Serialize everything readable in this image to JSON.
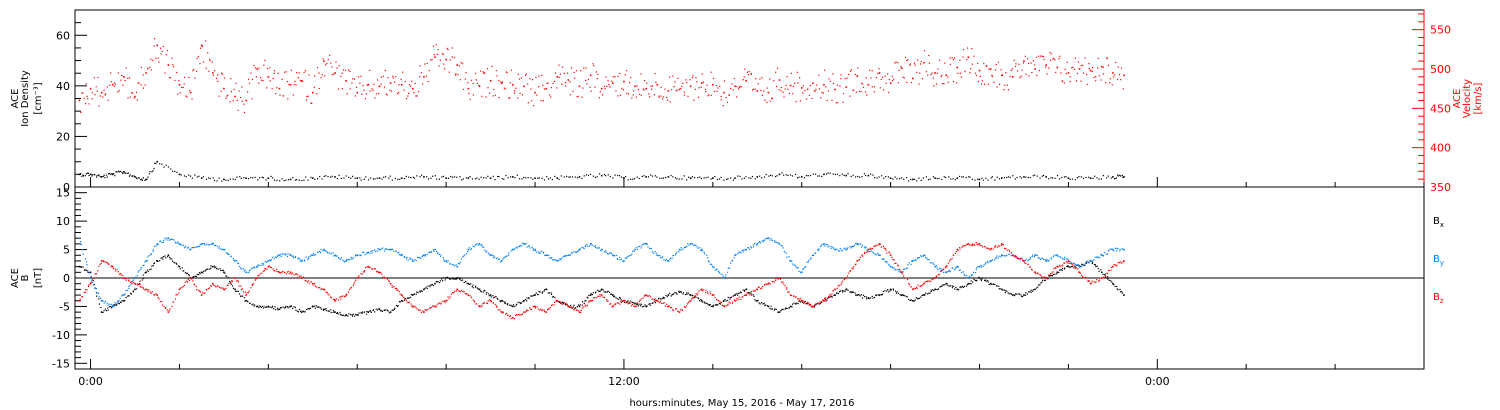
{
  "chart_data": [
    {
      "type": "scatter",
      "panel": "top",
      "left_axis": {
        "labels": [
          "ACE",
          "Ion Density",
          "[cm⁻³]"
        ],
        "ylim": [
          0,
          70
        ],
        "ticks": [
          0,
          20,
          40,
          60
        ],
        "color": "#000000"
      },
      "right_axis": {
        "labels": [
          "ACE",
          "Velocity",
          "[km/s]"
        ],
        "ylim": [
          350,
          575
        ],
        "ticks": [
          350,
          400,
          450,
          500,
          550
        ],
        "color": "#ff0000"
      },
      "series": [
        {
          "color": "#000000",
          "axis": "left",
          "x": [
            -0.5,
            0,
            0.5,
            1,
            1.5,
            2,
            2.5,
            3,
            4,
            5,
            6,
            7,
            8,
            9,
            10,
            11,
            12,
            13,
            14,
            15,
            16,
            17,
            18,
            19,
            20,
            21,
            22,
            23,
            24,
            25,
            26,
            27,
            28,
            29,
            30,
            31,
            32,
            33,
            34,
            35,
            36,
            37,
            38,
            39,
            40,
            41,
            42,
            43,
            44,
            45,
            46,
            46.5
          ],
          "values": [
            5,
            5,
            4,
            5,
            6,
            4,
            3,
            10,
            5,
            3.5,
            3,
            3.5,
            3.5,
            3,
            3.5,
            4,
            3.5,
            3.5,
            3.5,
            4,
            3.5,
            3.5,
            3.5,
            4,
            3.5,
            3.5,
            4,
            4.5,
            3.5,
            4,
            4,
            3.5,
            3.5,
            3.5,
            4,
            5,
            4,
            5,
            4.5,
            4.5,
            3.5,
            3,
            3.5,
            3.5,
            3,
            3.5,
            4,
            4,
            3.5,
            3.5,
            4,
            4
          ]
        },
        {
          "color": "#ff0000",
          "axis": "right",
          "x": [
            -0.5,
            0,
            0.5,
            1,
            1.5,
            2,
            2.5,
            3,
            3.5,
            4,
            4.5,
            5,
            5.5,
            6,
            6.5,
            7,
            7.5,
            8,
            8.5,
            9,
            9.5,
            10,
            10.5,
            11,
            11.5,
            12,
            12.5,
            13,
            13.5,
            14,
            14.5,
            15,
            15.5,
            16,
            16.5,
            17,
            17.5,
            18,
            18.5,
            19,
            19.5,
            20,
            20.5,
            21,
            21.5,
            22,
            22.5,
            23,
            23.5,
            24,
            24.5,
            25,
            25.5,
            26,
            26.5,
            27,
            27.5,
            28,
            28.5,
            29,
            29.5,
            30,
            30.5,
            31,
            31.5,
            32,
            32.5,
            33,
            33.5,
            34,
            34.5,
            35,
            35.5,
            36,
            36.5,
            37,
            37.5,
            38,
            38.5,
            39,
            39.5,
            40,
            40.5,
            41,
            41.5,
            42,
            42.5,
            43,
            43.5,
            44,
            44.5,
            45,
            45.5,
            46,
            46.5
          ],
          "values": [
            460,
            475,
            470,
            480,
            490,
            465,
            495,
            530,
            505,
            480,
            470,
            530,
            495,
            475,
            465,
            460,
            500,
            490,
            475,
            480,
            485,
            470,
            510,
            495,
            485,
            470,
            480,
            478,
            482,
            480,
            475,
            490,
            515,
            512,
            505,
            475,
            478,
            485,
            482,
            480,
            478,
            470,
            475,
            490,
            486,
            478,
            492,
            475,
            482,
            484,
            478,
            475,
            480,
            472,
            474,
            478,
            482,
            480,
            470,
            478,
            485,
            472,
            470,
            486,
            479,
            476,
            482,
            480,
            474,
            477,
            491,
            480,
            495,
            482,
            501,
            488,
            508,
            495,
            492,
            502,
            515,
            498,
            500,
            492,
            490,
            510,
            500,
            505,
            502,
            495,
            500,
            498,
            503,
            495,
            492
          ]
        }
      ]
    },
    {
      "type": "scatter",
      "panel": "bottom",
      "left_axis": {
        "labels": [
          "ACE",
          "B",
          "[nT]"
        ],
        "ylim": [
          -16,
          16
        ],
        "ticks": [
          -15,
          -10,
          -5,
          0,
          5,
          10,
          15
        ],
        "color": "#000000"
      },
      "legend": {
        "position": "right",
        "items": [
          {
            "label": "B",
            "sub": "x",
            "color": "#000000"
          },
          {
            "label": "B",
            "sub": "y",
            "color": "#0080ff"
          },
          {
            "label": "B",
            "sub": "z",
            "color": "#ff0000"
          }
        ]
      },
      "series": [
        {
          "name": "Bx",
          "color": "#000000",
          "x": [
            -0.5,
            0,
            0.5,
            1,
            1.5,
            2,
            2.5,
            3,
            3.5,
            4,
            4.5,
            5,
            5.5,
            6,
            6.5,
            7,
            7.5,
            8,
            8.5,
            9,
            9.5,
            10,
            10.5,
            11,
            11.5,
            12,
            12.5,
            13,
            13.5,
            14,
            14.5,
            15,
            15.5,
            16,
            16.5,
            17,
            17.5,
            18,
            18.5,
            19,
            19.5,
            20,
            20.5,
            21,
            21.5,
            22,
            22.5,
            23,
            23.5,
            24,
            24.5,
            25,
            25.5,
            26,
            26.5,
            27,
            27.5,
            28,
            28.5,
            29,
            29.5,
            30,
            30.5,
            31,
            31.5,
            32,
            32.5,
            33,
            33.5,
            34,
            34.5,
            35,
            35.5,
            36,
            36.5,
            37,
            37.5,
            38,
            38.5,
            39,
            39.5,
            40,
            40.5,
            41,
            41.5,
            42,
            42.5,
            43,
            43.5,
            44,
            44.5,
            45,
            45.5,
            46,
            46.5
          ],
          "values": [
            2,
            1,
            -6,
            -5,
            -4,
            -2,
            1,
            3,
            4,
            2,
            0,
            1,
            2,
            1,
            -2,
            -4,
            -5,
            -5,
            -5.5,
            -5,
            -6,
            -5,
            -5.5,
            -6,
            -6.5,
            -6.5,
            -6,
            -5.5,
            -6,
            -4,
            -3,
            -2,
            -1,
            0,
            0,
            -1,
            -2,
            -3,
            -4,
            -5,
            -4,
            -3,
            -2,
            -4,
            -5,
            -5,
            -3,
            -2,
            -3,
            -4,
            -4.5,
            -5,
            -4,
            -3,
            -2.5,
            -3,
            -4,
            -5,
            -4,
            -3,
            -2,
            -4,
            -5,
            -6,
            -5,
            -4,
            -5,
            -4,
            -3,
            -2,
            -3,
            -3.5,
            -3,
            -2,
            -3,
            -4,
            -3,
            -2,
            -1,
            -2,
            -1,
            0,
            -1,
            -2,
            -3,
            -3,
            -2,
            0,
            1,
            2,
            2,
            3,
            1,
            -1,
            -3
          ]
        },
        {
          "name": "By",
          "color": "#0080ff",
          "x": [
            -0.5,
            0,
            0.5,
            1,
            1.5,
            2,
            2.5,
            3,
            3.5,
            4,
            4.5,
            5,
            5.5,
            6,
            6.5,
            7,
            7.5,
            8,
            8.5,
            9,
            9.5,
            10,
            10.5,
            11,
            11.5,
            12,
            12.5,
            13,
            13.5,
            14,
            14.5,
            15,
            15.5,
            16,
            16.5,
            17,
            17.5,
            18,
            18.5,
            19,
            19.5,
            20,
            20.5,
            21,
            21.5,
            22,
            22.5,
            23,
            23.5,
            24,
            24.5,
            25,
            25.5,
            26,
            26.5,
            27,
            27.5,
            28,
            28.5,
            29,
            29.5,
            30,
            30.5,
            31,
            31.5,
            32,
            32.5,
            33,
            33.5,
            34,
            34.5,
            35,
            35.5,
            36,
            36.5,
            37,
            37.5,
            38,
            38.5,
            39,
            39.5,
            40,
            40.5,
            41,
            41.5,
            42,
            42.5,
            43,
            43.5,
            44,
            44.5,
            45,
            45.5,
            46,
            46.5
          ],
          "values": [
            7,
            0,
            -4,
            -5,
            -3,
            0,
            3,
            6,
            7,
            6,
            5,
            6,
            6,
            5,
            3,
            1,
            2,
            3,
            4,
            4,
            3,
            4,
            5,
            4,
            3,
            4,
            4.5,
            5,
            5,
            4,
            3,
            4,
            5,
            3,
            2,
            5,
            6,
            4,
            3,
            5,
            6,
            5,
            4,
            3,
            4,
            5,
            6,
            5,
            4,
            3,
            5,
            6,
            4,
            3,
            5,
            6,
            5,
            2,
            0,
            4,
            5,
            6,
            7,
            6,
            3,
            1,
            4,
            6,
            5,
            5,
            6,
            5,
            4,
            2,
            1,
            3,
            4,
            2,
            1,
            2,
            0,
            2,
            3,
            4,
            4,
            3,
            4,
            3,
            4,
            3,
            2,
            3,
            4,
            5,
            5
          ]
        },
        {
          "name": "Bz",
          "color": "#ff0000",
          "x": [
            -0.5,
            0,
            0.5,
            1,
            1.5,
            2,
            2.5,
            3,
            3.5,
            4,
            4.5,
            5,
            5.5,
            6,
            6.5,
            7,
            7.5,
            8,
            8.5,
            9,
            9.5,
            10,
            10.5,
            11,
            11.5,
            12,
            12.5,
            13,
            13.5,
            14,
            14.5,
            15,
            15.5,
            16,
            16.5,
            17,
            17.5,
            18,
            18.5,
            19,
            19.5,
            20,
            20.5,
            21,
            21.5,
            22,
            22.5,
            23,
            23.5,
            24,
            24.5,
            25,
            25.5,
            26,
            26.5,
            27,
            27.5,
            28,
            28.5,
            29,
            29.5,
            30,
            30.5,
            31,
            31.5,
            32,
            32.5,
            33,
            33.5,
            34,
            34.5,
            35,
            35.5,
            36,
            36.5,
            37,
            37.5,
            38,
            38.5,
            39,
            39.5,
            40,
            40.5,
            41,
            41.5,
            42,
            42.5,
            43,
            43.5,
            44,
            44.5,
            45,
            45.5,
            46,
            46.5
          ],
          "values": [
            -4,
            -1,
            3,
            2,
            0,
            -1,
            -2,
            -3,
            -6,
            -2,
            0,
            -3,
            -1,
            -2,
            0,
            -3,
            0,
            2,
            1,
            1,
            0,
            -1,
            -2,
            -4,
            -3,
            0,
            2,
            1,
            -1,
            -3,
            -5,
            -6,
            -5,
            -4,
            -2,
            -3,
            -5,
            -4,
            -6,
            -7,
            -6,
            -5,
            -6,
            -4,
            -5,
            -6,
            -4,
            -3,
            -5,
            -4,
            -5,
            -3,
            -4,
            -5,
            -6,
            -4,
            -2,
            -3,
            -5,
            -4,
            -3,
            -2,
            -1,
            0,
            -3,
            -4,
            -5,
            -4,
            -2,
            0,
            3,
            5,
            6,
            4,
            1,
            -2,
            -1,
            0,
            2,
            5,
            6,
            6,
            5,
            6,
            4,
            3,
            1,
            0,
            2,
            3,
            1,
            -1,
            0,
            2,
            3
          ]
        }
      ]
    }
  ],
  "xaxis": {
    "label": "hours:minutes, May 15, 2016 - May 17, 2016",
    "xlim": [
      -0.7,
      60
    ],
    "major_ticks": [
      {
        "x": 0,
        "label": "0:00"
      },
      {
        "x": 24,
        "label": "12:00"
      },
      {
        "x": 48,
        "label": "0:00"
      }
    ],
    "minor_step": 4
  }
}
